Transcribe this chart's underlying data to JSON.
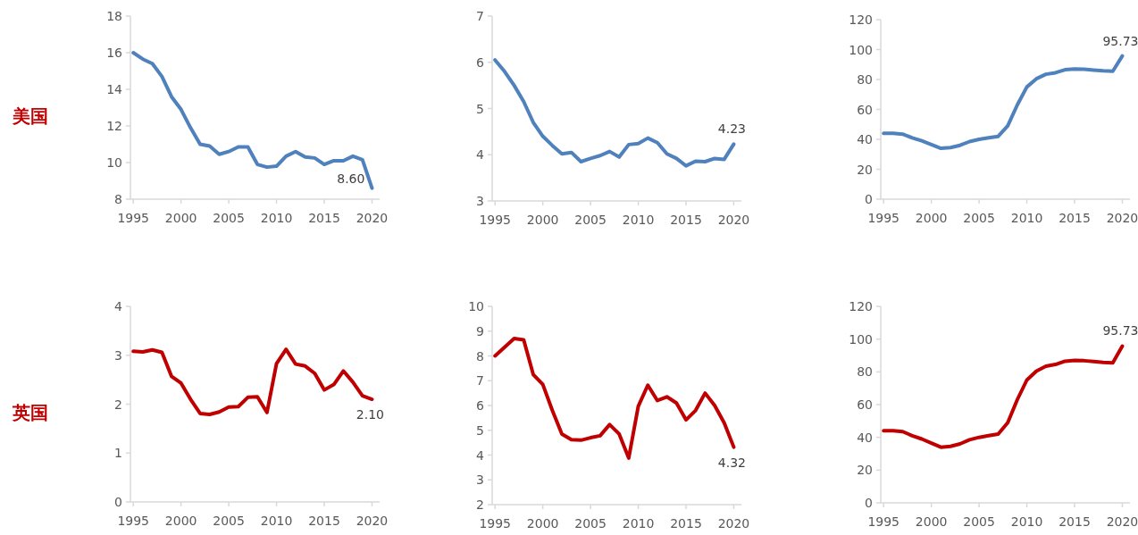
{
  "chart_data": [
    {
      "type": "line",
      "ylabel": "美国",
      "x": [
        1995,
        1996,
        1997,
        1998,
        1999,
        2000,
        2001,
        2002,
        2003,
        2004,
        2005,
        2006,
        2007,
        2008,
        2009,
        2010,
        2011,
        2012,
        2013,
        2014,
        2015,
        2016,
        2017,
        2018,
        2019,
        2020
      ],
      "xlim": [
        1994.7,
        2020.8
      ],
      "xticks": [
        1995,
        2000,
        2005,
        2010,
        2015,
        2020
      ],
      "ylim": [
        8,
        18
      ],
      "yticks": [
        8,
        10,
        12,
        14,
        16,
        18
      ],
      "grid": false,
      "series": [
        {
          "color": "#4f81bd",
          "values": [
            16.0,
            15.65,
            15.4,
            14.7,
            13.6,
            12.9,
            11.9,
            11.0,
            10.9,
            10.45,
            10.6,
            10.85,
            10.85,
            9.9,
            9.75,
            9.8,
            10.35,
            10.6,
            10.3,
            10.25,
            9.9,
            10.1,
            10.1,
            10.35,
            10.15,
            8.6
          ],
          "value_labels": [
            null,
            null,
            null,
            null,
            null,
            null,
            null,
            null,
            null,
            null,
            null,
            null,
            null,
            null,
            null,
            null,
            null,
            null,
            null,
            null,
            null,
            null,
            null,
            null,
            null,
            "8.60"
          ]
        }
      ]
    },
    {
      "type": "line",
      "x": [
        1995,
        1996,
        1997,
        1998,
        1999,
        2000,
        2001,
        2002,
        2003,
        2004,
        2005,
        2006,
        2007,
        2008,
        2009,
        2010,
        2011,
        2012,
        2013,
        2014,
        2015,
        2016,
        2017,
        2018,
        2019,
        2020
      ],
      "xlim": [
        1994.7,
        2020.8
      ],
      "xticks": [
        1995,
        2000,
        2005,
        2010,
        2015,
        2020
      ],
      "ylim": [
        3,
        7
      ],
      "yticks": [
        3,
        4,
        5,
        6,
        7
      ],
      "grid": false,
      "series": [
        {
          "color": "#4f81bd",
          "values": [
            6.05,
            5.8,
            5.5,
            5.15,
            4.7,
            4.4,
            4.2,
            4.02,
            4.05,
            3.85,
            3.92,
            3.98,
            4.07,
            3.95,
            4.22,
            4.24,
            4.36,
            4.26,
            4.02,
            3.92,
            3.76,
            3.86,
            3.85,
            3.92,
            3.9,
            4.23
          ],
          "value_labels": [
            null,
            null,
            null,
            null,
            null,
            null,
            null,
            null,
            null,
            null,
            null,
            null,
            null,
            null,
            null,
            null,
            null,
            null,
            null,
            null,
            null,
            null,
            null,
            null,
            null,
            "4.23"
          ]
        }
      ]
    },
    {
      "type": "line",
      "x": [
        1995,
        1996,
        1997,
        1998,
        1999,
        2000,
        2001,
        2002,
        2003,
        2004,
        2005,
        2006,
        2007,
        2008,
        2009,
        2010,
        2011,
        2012,
        2013,
        2014,
        2015,
        2016,
        2017,
        2018,
        2019,
        2020
      ],
      "xlim": [
        1994.7,
        2020.8
      ],
      "xticks": [
        1995,
        2000,
        2005,
        2010,
        2015,
        2020
      ],
      "ylim": [
        0,
        120
      ],
      "yticks": [
        0,
        20,
        40,
        60,
        80,
        100,
        120
      ],
      "grid": false,
      "series": [
        {
          "color": "#4f81bd",
          "values": [
            44,
            44,
            43.5,
            41,
            39,
            36.5,
            34,
            34.5,
            36,
            38.5,
            40,
            41,
            42,
            49,
            63,
            75,
            80.5,
            83.5,
            84.5,
            86.5,
            87,
            86.8,
            86.3,
            85.8,
            85.5,
            95.73
          ],
          "value_labels": [
            null,
            null,
            null,
            null,
            null,
            null,
            null,
            null,
            null,
            null,
            null,
            null,
            null,
            null,
            null,
            null,
            null,
            null,
            null,
            null,
            null,
            null,
            null,
            null,
            null,
            "95.73"
          ]
        }
      ]
    },
    {
      "type": "line",
      "ylabel": "英国",
      "x": [
        1995,
        1996,
        1997,
        1998,
        1999,
        2000,
        2001,
        2002,
        2003,
        2004,
        2005,
        2006,
        2007,
        2008,
        2009,
        2010,
        2011,
        2012,
        2013,
        2014,
        2015,
        2016,
        2017,
        2018,
        2019,
        2020
      ],
      "xlim": [
        1994.7,
        2020.8
      ],
      "xticks": [
        1995,
        2000,
        2005,
        2010,
        2015,
        2020
      ],
      "ylim": [
        0,
        4
      ],
      "yticks": [
        0,
        1,
        2,
        3,
        4
      ],
      "grid": false,
      "series": [
        {
          "color": "#c00000",
          "values": [
            3.08,
            3.07,
            3.11,
            3.06,
            2.57,
            2.43,
            2.1,
            1.81,
            1.79,
            1.84,
            1.94,
            1.95,
            2.14,
            2.15,
            1.83,
            2.83,
            3.12,
            2.82,
            2.78,
            2.63,
            2.29,
            2.4,
            2.68,
            2.45,
            2.17,
            2.1
          ],
          "value_labels": [
            null,
            null,
            null,
            null,
            null,
            null,
            null,
            null,
            null,
            null,
            null,
            null,
            null,
            null,
            null,
            null,
            null,
            null,
            null,
            null,
            null,
            null,
            null,
            null,
            null,
            "2.10"
          ]
        }
      ]
    },
    {
      "type": "line",
      "x": [
        1995,
        1996,
        1997,
        1998,
        1999,
        2000,
        2001,
        2002,
        2003,
        2004,
        2005,
        2006,
        2007,
        2008,
        2009,
        2010,
        2011,
        2012,
        2013,
        2014,
        2015,
        2016,
        2017,
        2018,
        2019,
        2020
      ],
      "xlim": [
        1994.7,
        2020.8
      ],
      "xticks": [
        1995,
        2000,
        2005,
        2010,
        2015,
        2020
      ],
      "ylim": [
        2,
        10
      ],
      "yticks": [
        2,
        3,
        4,
        5,
        6,
        7,
        8,
        9,
        10
      ],
      "grid": false,
      "series": [
        {
          "color": "#c00000",
          "values": [
            8.0,
            8.35,
            8.7,
            8.65,
            7.25,
            6.85,
            5.8,
            4.85,
            4.62,
            4.6,
            4.7,
            4.78,
            5.23,
            4.85,
            3.88,
            5.97,
            6.82,
            6.2,
            6.35,
            6.1,
            5.42,
            5.8,
            6.5,
            6.0,
            5.3,
            4.32
          ],
          "value_labels": [
            null,
            null,
            null,
            null,
            null,
            null,
            null,
            null,
            null,
            null,
            null,
            null,
            null,
            null,
            null,
            null,
            null,
            null,
            null,
            null,
            null,
            null,
            null,
            null,
            null,
            "4.32"
          ]
        }
      ]
    },
    {
      "type": "line",
      "x": [
        1995,
        1996,
        1997,
        1998,
        1999,
        2000,
        2001,
        2002,
        2003,
        2004,
        2005,
        2006,
        2007,
        2008,
        2009,
        2010,
        2011,
        2012,
        2013,
        2014,
        2015,
        2016,
        2017,
        2018,
        2019,
        2020
      ],
      "xlim": [
        1994.7,
        2020.8
      ],
      "xticks": [
        1995,
        2000,
        2005,
        2010,
        2015,
        2020
      ],
      "ylim": [
        0,
        120
      ],
      "yticks": [
        0,
        20,
        40,
        60,
        80,
        100,
        120
      ],
      "grid": false,
      "series": [
        {
          "color": "#c00000",
          "values": [
            44,
            44,
            43.5,
            41,
            39,
            36.5,
            34,
            34.5,
            36,
            38.5,
            40,
            41,
            42,
            49,
            63,
            75,
            80.5,
            83.5,
            84.5,
            86.5,
            87,
            86.8,
            86.3,
            85.8,
            85.5,
            95.73
          ],
          "value_labels": [
            null,
            null,
            null,
            null,
            null,
            null,
            null,
            null,
            null,
            null,
            null,
            null,
            null,
            null,
            null,
            null,
            null,
            null,
            null,
            null,
            null,
            null,
            null,
            null,
            null,
            "95.73"
          ]
        }
      ]
    }
  ]
}
